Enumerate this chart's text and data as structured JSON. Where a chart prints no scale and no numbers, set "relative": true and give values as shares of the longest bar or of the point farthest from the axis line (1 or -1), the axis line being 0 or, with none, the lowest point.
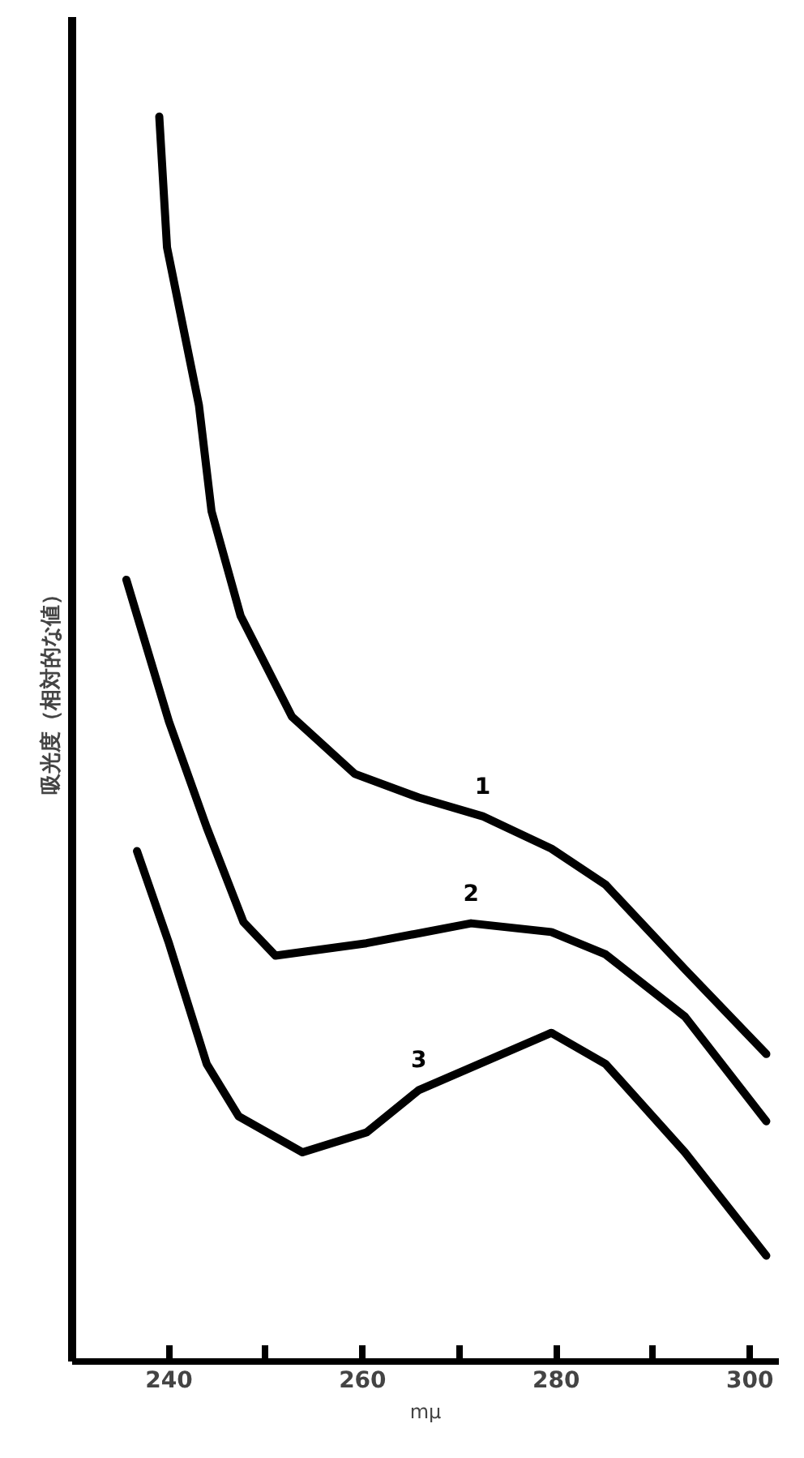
{
  "chart_data": {
    "type": "line",
    "relative": true,
    "xlabel": "mμ",
    "ylabel": "吸光度（相対的な値）",
    "xlim": [
      230,
      303
    ],
    "xticks": [
      240,
      {
        "value": 250,
        "label": null
      },
      260,
      {
        "value": 270,
        "label": null
      },
      280,
      {
        "value": 290,
        "label": null
      },
      300
    ],
    "grid": false,
    "marker": "none",
    "line_style": "solid",
    "series": [
      {
        "name": "1",
        "color": "#000000",
        "x": [
          239.0,
          239.8,
          243.1,
          244.4,
          247.4,
          252.7,
          259.2,
          265.8,
          272.4,
          279.5,
          285.1,
          293.3,
          301.7
        ],
        "values": [
          1.0,
          0.895,
          0.768,
          0.683,
          0.599,
          0.518,
          0.472,
          0.453,
          0.438,
          0.412,
          0.383,
          0.315,
          0.247
        ]
      },
      {
        "name": "2",
        "color": "#000000",
        "x": [
          235.6,
          240.0,
          243.9,
          247.7,
          251.0,
          260.4,
          271.2,
          279.5,
          285.1,
          293.3,
          301.7
        ],
        "values": [
          0.628,
          0.514,
          0.429,
          0.353,
          0.326,
          0.336,
          0.352,
          0.345,
          0.327,
          0.277,
          0.193
        ]
      },
      {
        "name": "3",
        "color": "#000000",
        "x": [
          236.7,
          240.0,
          243.9,
          247.2,
          253.8,
          260.4,
          265.8,
          279.5,
          285.1,
          293.3,
          301.7
        ],
        "values": [
          0.41,
          0.336,
          0.239,
          0.197,
          0.168,
          0.184,
          0.218,
          0.264,
          0.239,
          0.168,
          0.085
        ]
      }
    ]
  }
}
